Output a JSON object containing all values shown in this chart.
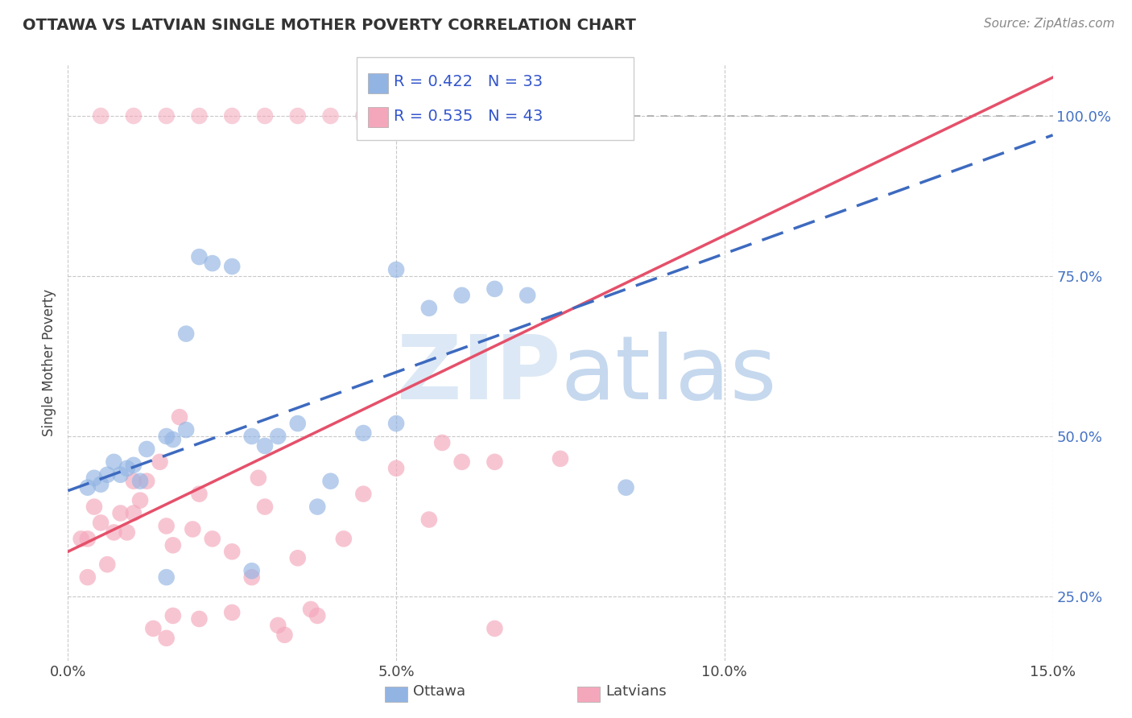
{
  "title": "OTTAWA VS LATVIAN SINGLE MOTHER POVERTY CORRELATION CHART",
  "source_text": "Source: ZipAtlas.com",
  "ylabel": "Single Mother Poverty",
  "xlim": [
    0.0,
    15.0
  ],
  "ylim": [
    15.0,
    108.0
  ],
  "xticks": [
    0.0,
    5.0,
    10.0,
    15.0
  ],
  "xtick_labels": [
    "0.0%",
    "5.0%",
    "10.0%",
    "15.0%"
  ],
  "ytick_vals": [
    25.0,
    50.0,
    75.0,
    100.0
  ],
  "ytick_labels": [
    "25.0%",
    "50.0%",
    "75.0%",
    "100.0%"
  ],
  "ottawa_color": "#92b4e3",
  "latvian_color": "#f4a7bb",
  "ottawa_line_color": "#3d6abf",
  "latvian_line_color": "#e5506a",
  "ytick_color": "#4472c4",
  "legend_text_color": "#3355cc",
  "watermark_color": "#dce8f5",
  "background_color": "#ffffff",
  "grid_color": "#c8c8c8",
  "ottawa_R": 0.422,
  "ottawa_N": 33,
  "latvian_R": 0.535,
  "latvian_N": 43,
  "ottawa_points": [
    [
      0.3,
      42.0
    ],
    [
      0.4,
      43.5
    ],
    [
      0.5,
      42.5
    ],
    [
      0.6,
      44.0
    ],
    [
      0.7,
      46.0
    ],
    [
      0.8,
      44.0
    ],
    [
      0.9,
      45.0
    ],
    [
      1.0,
      45.5
    ],
    [
      1.1,
      43.0
    ],
    [
      1.2,
      48.0
    ],
    [
      1.5,
      50.0
    ],
    [
      1.6,
      49.5
    ],
    [
      1.8,
      51.0
    ],
    [
      2.0,
      78.0
    ],
    [
      2.2,
      77.0
    ],
    [
      2.5,
      76.5
    ],
    [
      2.8,
      50.0
    ],
    [
      3.0,
      48.5
    ],
    [
      3.5,
      52.0
    ],
    [
      3.8,
      39.0
    ],
    [
      4.0,
      43.0
    ],
    [
      4.5,
      50.5
    ],
    [
      5.0,
      76.0
    ],
    [
      5.5,
      70.0
    ],
    [
      6.0,
      72.0
    ],
    [
      6.5,
      73.0
    ],
    [
      7.0,
      72.0
    ],
    [
      3.2,
      50.0
    ],
    [
      2.8,
      29.0
    ],
    [
      1.8,
      66.0
    ],
    [
      8.5,
      42.0
    ],
    [
      5.0,
      52.0
    ],
    [
      1.5,
      28.0
    ]
  ],
  "latvian_points": [
    [
      0.3,
      34.0
    ],
    [
      0.5,
      36.5
    ],
    [
      0.6,
      30.0
    ],
    [
      0.7,
      35.0
    ],
    [
      0.8,
      38.0
    ],
    [
      0.9,
      35.0
    ],
    [
      1.0,
      43.0
    ],
    [
      1.1,
      40.0
    ],
    [
      1.2,
      43.0
    ],
    [
      1.4,
      46.0
    ],
    [
      1.5,
      36.0
    ],
    [
      1.6,
      33.0
    ],
    [
      1.7,
      53.0
    ],
    [
      1.9,
      35.5
    ],
    [
      2.0,
      41.0
    ],
    [
      2.2,
      34.0
    ],
    [
      2.5,
      22.5
    ],
    [
      2.8,
      28.0
    ],
    [
      3.0,
      39.0
    ],
    [
      3.2,
      20.5
    ],
    [
      3.3,
      19.0
    ],
    [
      3.5,
      31.0
    ],
    [
      3.8,
      22.0
    ],
    [
      4.2,
      34.0
    ],
    [
      4.5,
      41.0
    ],
    [
      5.0,
      45.0
    ],
    [
      5.5,
      37.0
    ],
    [
      6.0,
      46.0
    ],
    [
      6.5,
      46.0
    ],
    [
      7.5,
      46.5
    ],
    [
      2.0,
      21.5
    ],
    [
      1.3,
      20.0
    ],
    [
      1.5,
      18.5
    ],
    [
      1.6,
      22.0
    ],
    [
      2.5,
      32.0
    ],
    [
      3.7,
      23.0
    ],
    [
      6.5,
      20.0
    ],
    [
      0.4,
      39.0
    ],
    [
      0.2,
      34.0
    ],
    [
      0.3,
      28.0
    ],
    [
      1.0,
      38.0
    ],
    [
      5.7,
      49.0
    ],
    [
      2.9,
      43.5
    ]
  ],
  "top_latvian_points_x": [
    0.5,
    1.0,
    1.5,
    2.0,
    2.5,
    3.0,
    3.5,
    4.0,
    4.5,
    5.0
  ],
  "top_latvian_points_y": [
    100.0,
    100.0,
    100.0,
    100.0,
    100.0,
    100.0,
    100.0,
    100.0,
    100.0,
    100.0
  ],
  "ottawa_line": {
    "x0": 0.0,
    "y0": 41.5,
    "x1": 15.0,
    "y1": 97.0
  },
  "latvian_line": {
    "x0": 0.0,
    "y0": 32.0,
    "x1": 15.0,
    "y1": 106.0
  }
}
